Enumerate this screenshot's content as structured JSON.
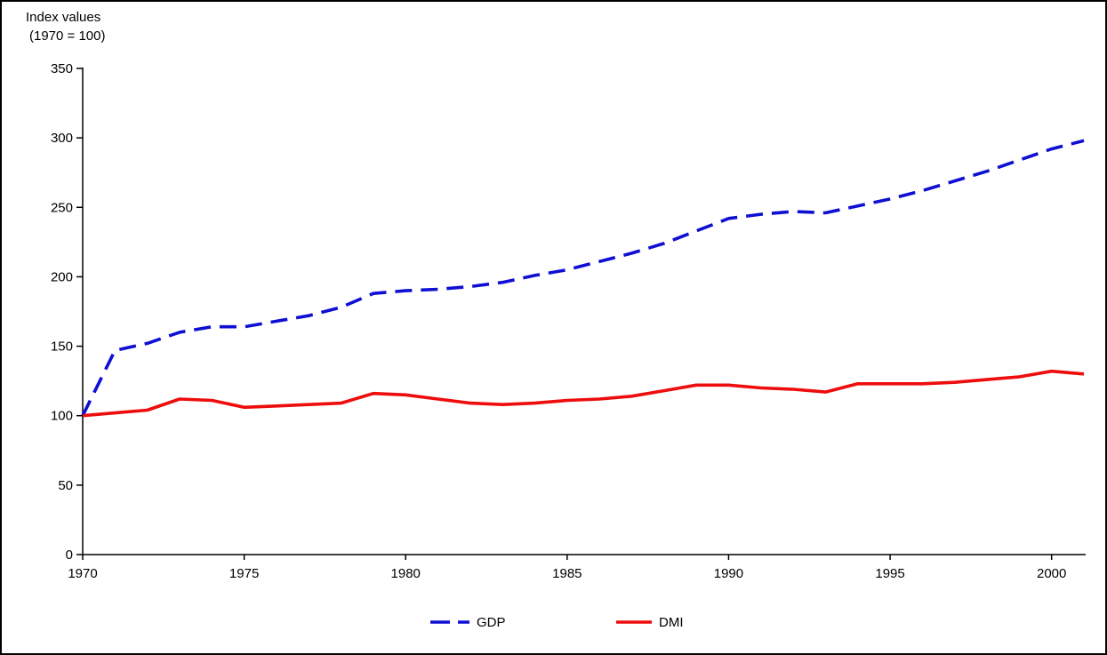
{
  "window": {
    "background": "#ffffff",
    "border_color": "#000000"
  },
  "chart_data": {
    "type": "line",
    "title": "Index values",
    "subtitle": "(1970 = 100)",
    "xlabel": "",
    "ylabel": "Index values (1970 = 100)",
    "xlim": [
      1970,
      2001
    ],
    "ylim": [
      0,
      350
    ],
    "x_ticks": [
      1970,
      1975,
      1980,
      1985,
      1990,
      1995,
      2000
    ],
    "y_ticks": [
      0,
      50,
      100,
      150,
      200,
      250,
      300,
      350
    ],
    "grid": false,
    "legend_position": "bottom-center",
    "axis_color": "#000000",
    "x": [
      1970,
      1971,
      1972,
      1973,
      1974,
      1975,
      1976,
      1977,
      1978,
      1979,
      1980,
      1981,
      1982,
      1983,
      1984,
      1985,
      1986,
      1987,
      1988,
      1989,
      1990,
      1991,
      1992,
      1993,
      1994,
      1995,
      1996,
      1997,
      1998,
      1999,
      2000,
      2001
    ],
    "series": [
      {
        "name": "GDP",
        "color": "#0f0fd4",
        "style": "dashed",
        "values": [
          100,
          147,
          152,
          160,
          164,
          164,
          168,
          172,
          178,
          188,
          190,
          191,
          193,
          196,
          201,
          205,
          211,
          217,
          224,
          233,
          242,
          245,
          247,
          246,
          251,
          256,
          262,
          269,
          276,
          284,
          292,
          298
        ]
      },
      {
        "name": "DMI",
        "color": "#ee0c0c",
        "style": "solid",
        "values": [
          100,
          102,
          104,
          112,
          111,
          106,
          107,
          108,
          109,
          116,
          115,
          112,
          109,
          108,
          109,
          111,
          112,
          114,
          118,
          122,
          122,
          120,
          119,
          117,
          123,
          123,
          123,
          124,
          126,
          128,
          132,
          130
        ]
      }
    ]
  }
}
